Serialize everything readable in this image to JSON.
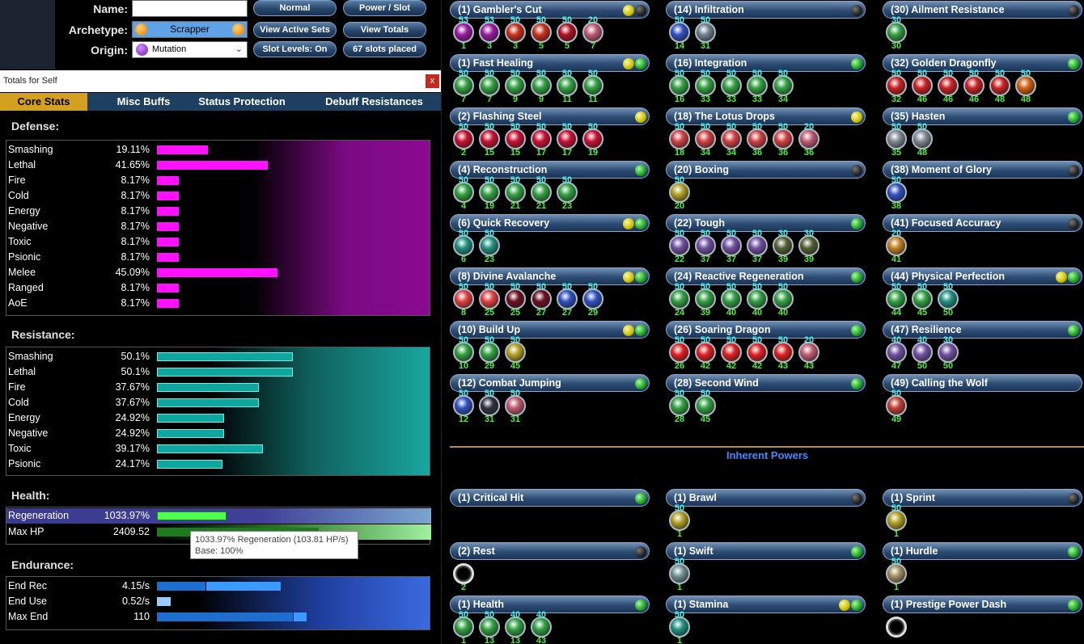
{
  "header": {
    "name_label": "Name:",
    "name_value": "",
    "archetype_label": "Archetype:",
    "archetype_value": "Scrapper",
    "origin_label": "Origin:",
    "origin_value": "Mutation",
    "buttons": [
      "Normal",
      "Power / Slot",
      "View Active Sets",
      "View Totals",
      "Slot Levels: On",
      "67 slots placed"
    ]
  },
  "totals": {
    "window_title": "Totals for Self",
    "close": "x",
    "tabs": [
      "Core Stats",
      "Misc Buffs",
      "Status Protection",
      "Debuff Resistances"
    ],
    "active_tab": "Core Stats",
    "defense": {
      "heading": "Defense:",
      "rows": [
        {
          "label": "Smashing",
          "value": "19.11%",
          "pct": 19.11
        },
        {
          "label": "Lethal",
          "value": "41.65%",
          "pct": 41.65
        },
        {
          "label": "Fire",
          "value": "8.17%",
          "pct": 8.17
        },
        {
          "label": "Cold",
          "value": "8.17%",
          "pct": 8.17
        },
        {
          "label": "Energy",
          "value": "8.17%",
          "pct": 8.17
        },
        {
          "label": "Negative",
          "value": "8.17%",
          "pct": 8.17
        },
        {
          "label": "Toxic",
          "value": "8.17%",
          "pct": 8.17
        },
        {
          "label": "Psionic",
          "value": "8.17%",
          "pct": 8.17
        },
        {
          "label": "Melee",
          "value": "45.09%",
          "pct": 45.09
        },
        {
          "label": "Ranged",
          "value": "8.17%",
          "pct": 8.17
        },
        {
          "label": "AoE",
          "value": "8.17%",
          "pct": 8.17
        }
      ]
    },
    "resistance": {
      "heading": "Resistance:",
      "rows": [
        {
          "label": "Smashing",
          "value": "50.1%",
          "pct": 50.1
        },
        {
          "label": "Lethal",
          "value": "50.1%",
          "pct": 50.1
        },
        {
          "label": "Fire",
          "value": "37.67%",
          "pct": 37.67
        },
        {
          "label": "Cold",
          "value": "37.67%",
          "pct": 37.67
        },
        {
          "label": "Energy",
          "value": "24.92%",
          "pct": 24.92
        },
        {
          "label": "Negative",
          "value": "24.92%",
          "pct": 24.92
        },
        {
          "label": "Toxic",
          "value": "39.17%",
          "pct": 39.17
        },
        {
          "label": "Psionic",
          "value": "24.17%",
          "pct": 24.17
        }
      ]
    },
    "health": {
      "heading": "Health:",
      "rows": [
        {
          "label": "Regeneration",
          "value": "1033.97%"
        },
        {
          "label": "Max HP",
          "value": "2409.52"
        }
      ],
      "tooltip_line1": "1033.97% Regeneration (103.81 HP/s)",
      "tooltip_line2": "Base: 100%"
    },
    "endurance": {
      "heading": "Endurance:",
      "rows": [
        {
          "label": "End Rec",
          "value": "4.15/s"
        },
        {
          "label": "End Use",
          "value": "0.52/s"
        },
        {
          "label": "Max End",
          "value": "110"
        }
      ]
    }
  },
  "build": {
    "inherent_title": "Inherent Powers",
    "powers": [
      {
        "title": "(1) Gambler's Cut",
        "dots": [
          "y",
          "k"
        ],
        "slots": [
          {
            "il": "53",
            "pl": "1",
            "c": "#9a1aa0"
          },
          {
            "il": "53",
            "pl": "3",
            "c": "#9a1aa0"
          },
          {
            "il": "50",
            "pl": "3",
            "c": "#c8301a"
          },
          {
            "il": "50",
            "pl": "5",
            "c": "#c8301a"
          },
          {
            "il": "50",
            "pl": "5",
            "c": "#b01020"
          },
          {
            "il": "20",
            "pl": "7",
            "c": "#c05a70"
          }
        ]
      },
      {
        "title": "(14) Infiltration",
        "dots": [
          "k"
        ],
        "slots": [
          {
            "il": "50",
            "pl": "14",
            "c": "#3050c0"
          },
          {
            "il": "50",
            "pl": "31",
            "c": "#708090"
          }
        ]
      },
      {
        "title": "(30) Ailment Resistance",
        "dots": [
          "k"
        ],
        "slots": [
          {
            "il": "30",
            "pl": "30",
            "c": "#30a040"
          }
        ]
      },
      {
        "title": "(1) Fast Healing",
        "dots": [
          "y",
          "g"
        ],
        "slots": [
          {
            "il": "50",
            "pl": "7",
            "c": "#30a040"
          },
          {
            "il": "50",
            "pl": "7",
            "c": "#30a040"
          },
          {
            "il": "50",
            "pl": "9",
            "c": "#30a040"
          },
          {
            "il": "50",
            "pl": "9",
            "c": "#30a040"
          },
          {
            "il": "50",
            "pl": "11",
            "c": "#30a040"
          },
          {
            "il": "50",
            "pl": "11",
            "c": "#30a040"
          }
        ]
      },
      {
        "title": "(16) Integration",
        "dots": [
          "g"
        ],
        "slots": [
          {
            "il": "50",
            "pl": "16",
            "c": "#30a040"
          },
          {
            "il": "50",
            "pl": "33",
            "c": "#30a040"
          },
          {
            "il": "50",
            "pl": "33",
            "c": "#30a040"
          },
          {
            "il": "50",
            "pl": "33",
            "c": "#30a040"
          },
          {
            "il": "50",
            "pl": "34",
            "c": "#30a040"
          }
        ]
      },
      {
        "title": "(32) Golden Dragonfly",
        "dots": [
          "g"
        ],
        "slots": [
          {
            "il": "50",
            "pl": "32",
            "c": "#c82020"
          },
          {
            "il": "50",
            "pl": "46",
            "c": "#c82020"
          },
          {
            "il": "50",
            "pl": "46",
            "c": "#c82020"
          },
          {
            "il": "50",
            "pl": "46",
            "c": "#c82020"
          },
          {
            "il": "50",
            "pl": "48",
            "c": "#c82020"
          },
          {
            "il": "50",
            "pl": "48",
            "c": "#d06010"
          }
        ]
      },
      {
        "title": "(2) Flashing Steel",
        "dots": [
          "y"
        ],
        "slots": [
          {
            "il": "50",
            "pl": "2",
            "c": "#c81030"
          },
          {
            "il": "50",
            "pl": "15",
            "c": "#c81030"
          },
          {
            "il": "50",
            "pl": "15",
            "c": "#c81030"
          },
          {
            "il": "50",
            "pl": "17",
            "c": "#c81030"
          },
          {
            "il": "50",
            "pl": "17",
            "c": "#c81030"
          },
          {
            "il": "50",
            "pl": "19",
            "c": "#c81030"
          }
        ]
      },
      {
        "title": "(18) The Lotus Drops",
        "dots": [
          "y"
        ],
        "slots": [
          {
            "il": "50",
            "pl": "18",
            "c": "#d04040"
          },
          {
            "il": "50",
            "pl": "34",
            "c": "#d04040"
          },
          {
            "il": "50",
            "pl": "34",
            "c": "#d04040"
          },
          {
            "il": "50",
            "pl": "36",
            "c": "#d04040"
          },
          {
            "il": "50",
            "pl": "36",
            "c": "#d04040"
          },
          {
            "il": "20",
            "pl": "36",
            "c": "#c05a70"
          }
        ]
      },
      {
        "title": "(35) Hasten",
        "dots": [
          "g"
        ],
        "slots": [
          {
            "il": "50",
            "pl": "35",
            "c": "#808890"
          },
          {
            "il": "50",
            "pl": "48",
            "c": "#808890"
          }
        ]
      },
      {
        "title": "(4) Reconstruction",
        "dots": [
          "g"
        ],
        "slots": [
          {
            "il": "50",
            "pl": "4",
            "c": "#30a040"
          },
          {
            "il": "50",
            "pl": "19",
            "c": "#30a040"
          },
          {
            "il": "50",
            "pl": "21",
            "c": "#30a040"
          },
          {
            "il": "50",
            "pl": "21",
            "c": "#30a040"
          },
          {
            "il": "50",
            "pl": "23",
            "c": "#30a040"
          }
        ]
      },
      {
        "title": "(20) Boxing",
        "dots": [
          "k"
        ],
        "slots": [
          {
            "il": "50",
            "pl": "20",
            "c": "#b0a020"
          }
        ]
      },
      {
        "title": "(38) Moment of Glory",
        "dots": [
          "k"
        ],
        "slots": [
          {
            "il": "50",
            "pl": "38",
            "c": "#3050c0"
          }
        ]
      },
      {
        "title": "(6) Quick Recovery",
        "dots": [
          "y",
          "g"
        ],
        "slots": [
          {
            "il": "50",
            "pl": "6",
            "c": "#209080"
          },
          {
            "il": "50",
            "pl": "23",
            "c": "#209080"
          }
        ]
      },
      {
        "title": "(22) Tough",
        "dots": [
          "g"
        ],
        "slots": [
          {
            "il": "50",
            "pl": "22",
            "c": "#7050a0"
          },
          {
            "il": "50",
            "pl": "37",
            "c": "#7050a0"
          },
          {
            "il": "50",
            "pl": "37",
            "c": "#7050a0"
          },
          {
            "il": "50",
            "pl": "37",
            "c": "#7050a0"
          },
          {
            "il": "30",
            "pl": "39",
            "c": "#506030"
          },
          {
            "il": "30",
            "pl": "39",
            "c": "#506030"
          }
        ]
      },
      {
        "title": "(41) Focused Accuracy",
        "dots": [
          "k"
        ],
        "slots": [
          {
            "il": "20",
            "pl": "41",
            "c": "#c08020"
          }
        ]
      },
      {
        "title": "(8) Divine Avalanche",
        "dots": [
          "y",
          "g"
        ],
        "slots": [
          {
            "il": "50",
            "pl": "8",
            "c": "#e04040"
          },
          {
            "il": "50",
            "pl": "25",
            "c": "#e04040"
          },
          {
            "il": "50",
            "pl": "25",
            "c": "#6a1020"
          },
          {
            "il": "50",
            "pl": "27",
            "c": "#6a1020"
          },
          {
            "il": "50",
            "pl": "27",
            "c": "#3050c0"
          },
          {
            "il": "50",
            "pl": "29",
            "c": "#3050c0"
          }
        ]
      },
      {
        "title": "(24) Reactive Regeneration",
        "dots": [
          "g"
        ],
        "slots": [
          {
            "il": "50",
            "pl": "24",
            "c": "#30a040"
          },
          {
            "il": "50",
            "pl": "39",
            "c": "#30a040"
          },
          {
            "il": "50",
            "pl": "40",
            "c": "#30a040"
          },
          {
            "il": "50",
            "pl": "40",
            "c": "#30a040"
          },
          {
            "il": "50",
            "pl": "40",
            "c": "#30a040"
          }
        ]
      },
      {
        "title": "(44) Physical Perfection",
        "dots": [
          "y",
          "g"
        ],
        "slots": [
          {
            "il": "50",
            "pl": "44",
            "c": "#30a040"
          },
          {
            "il": "50",
            "pl": "45",
            "c": "#30a040"
          },
          {
            "il": "50",
            "pl": "50",
            "c": "#209080"
          }
        ]
      },
      {
        "title": "(10) Build Up",
        "dots": [
          "y",
          "g"
        ],
        "slots": [
          {
            "il": "50",
            "pl": "10",
            "c": "#30a040"
          },
          {
            "il": "50",
            "pl": "29",
            "c": "#30a040"
          },
          {
            "il": "50",
            "pl": "45",
            "c": "#b0a020"
          }
        ]
      },
      {
        "title": "(26) Soaring Dragon",
        "dots": [
          "g"
        ],
        "slots": [
          {
            "il": "50",
            "pl": "26",
            "c": "#e02020"
          },
          {
            "il": "50",
            "pl": "42",
            "c": "#e02020"
          },
          {
            "il": "50",
            "pl": "42",
            "c": "#e02020"
          },
          {
            "il": "50",
            "pl": "42",
            "c": "#e02020"
          },
          {
            "il": "50",
            "pl": "43",
            "c": "#e02020"
          },
          {
            "il": "20",
            "pl": "43",
            "c": "#c05a70"
          }
        ]
      },
      {
        "title": "(47) Resilience",
        "dots": [
          "g"
        ],
        "slots": [
          {
            "il": "40",
            "pl": "47",
            "c": "#7050a0"
          },
          {
            "il": "40",
            "pl": "50",
            "c": "#7050a0"
          },
          {
            "il": "30",
            "pl": "50",
            "c": "#7050a0"
          }
        ]
      },
      {
        "title": "(12) Combat Jumping",
        "dots": [
          "g"
        ],
        "slots": [
          {
            "il": "50",
            "pl": "12",
            "c": "#3050c0"
          },
          {
            "il": "50",
            "pl": "31",
            "c": "#303040"
          },
          {
            "il": "50",
            "pl": "31",
            "c": "#c05a70"
          }
        ]
      },
      {
        "title": "(28) Second Wind",
        "dots": [
          "g"
        ],
        "slots": [
          {
            "il": "50",
            "pl": "28",
            "c": "#30a040"
          },
          {
            "il": "50",
            "pl": "45",
            "c": "#30a040"
          }
        ]
      },
      {
        "title": "(49) Calling the Wolf",
        "dots": [],
        "slots": [
          {
            "il": "50",
            "pl": "49",
            "c": "#c04030"
          }
        ]
      }
    ],
    "inherent": [
      {
        "title": "(1) Critical Hit",
        "dots": [
          "g"
        ],
        "slots": []
      },
      {
        "title": "(1) Brawl",
        "dots": [
          "k"
        ],
        "slots": [
          {
            "il": "50",
            "pl": "1",
            "c": "#b0a020"
          }
        ]
      },
      {
        "title": "(1) Sprint",
        "dots": [
          "k"
        ],
        "slots": [
          {
            "il": "50",
            "pl": "1",
            "c": "#b0a020"
          }
        ]
      },
      {
        "title": "(2) Rest",
        "dots": [
          "k"
        ],
        "slots": [
          {
            "il": "",
            "pl": "2",
            "c": "empty"
          }
        ]
      },
      {
        "title": "(1) Swift",
        "dots": [
          "g"
        ],
        "slots": [
          {
            "il": "50",
            "pl": "1",
            "c": "#709090"
          }
        ]
      },
      {
        "title": "(1) Hurdle",
        "dots": [
          "g"
        ],
        "slots": [
          {
            "il": "50",
            "pl": "1",
            "c": "#a09060"
          }
        ]
      },
      {
        "title": "(1) Health",
        "dots": [
          "g"
        ],
        "slots": [
          {
            "il": "50",
            "pl": "1",
            "c": "#30a040"
          },
          {
            "il": "50",
            "pl": "13",
            "c": "#30a040"
          },
          {
            "il": "40",
            "pl": "13",
            "c": "#30a040"
          },
          {
            "il": "40",
            "pl": "43",
            "c": "#30a040"
          }
        ]
      },
      {
        "title": "(1) Stamina",
        "dots": [
          "y",
          "g"
        ],
        "slots": [
          {
            "il": "50",
            "pl": "1",
            "c": "#209080"
          }
        ]
      },
      {
        "title": "(1) Prestige Power Dash",
        "dots": [
          "g"
        ],
        "slots": [
          {
            "il": "",
            "pl": "",
            "c": "empty"
          }
        ]
      }
    ]
  }
}
